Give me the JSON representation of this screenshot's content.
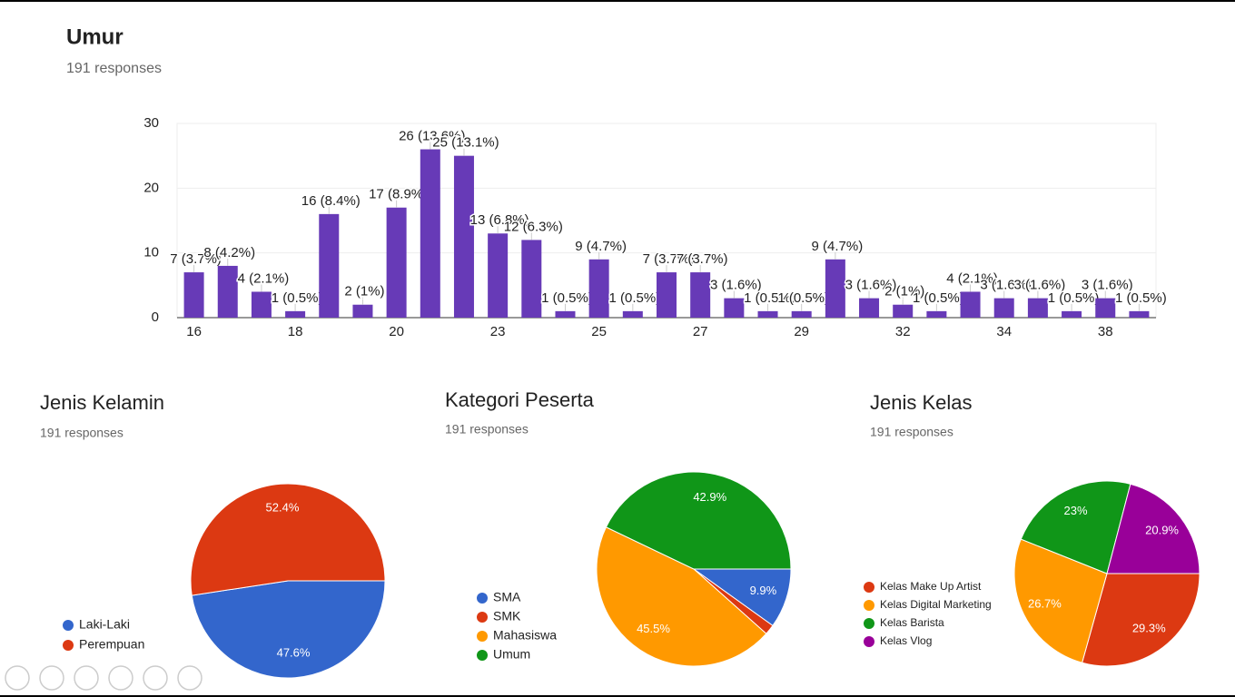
{
  "chart_data": [
    {
      "type": "bar",
      "title": "Umur",
      "subtitle": "191 responses",
      "categories": [
        16,
        null,
        null,
        18,
        null,
        null,
        20,
        null,
        null,
        23,
        null,
        null,
        25,
        null,
        null,
        27,
        null,
        null,
        29,
        null,
        null,
        32,
        null,
        null,
        34,
        null,
        null,
        38,
        null
      ],
      "values": [
        7,
        8,
        4,
        1,
        16,
        2,
        17,
        26,
        25,
        13,
        12,
        1,
        9,
        1,
        7,
        7,
        3,
        1,
        1,
        9,
        3,
        2,
        1,
        4,
        3,
        3,
        1,
        3,
        1
      ],
      "value_labels": [
        "7 (3.7%)",
        "8 (4.2%)",
        "4 (2.1%)",
        "1 (0.5%)",
        "16 (8.4%)",
        "2 (1%)",
        "17 (8.9%)",
        "26 (13.6%)",
        "25 (13.1%)",
        "13 (6.8%)",
        "12 (6.3%)",
        "1 (0.5%)",
        "9 (4.7%)",
        "1 (0.5%)",
        "7 (3.7%)",
        "7 (3.7%)",
        "3 (1.6%)",
        "1 (0.5%)",
        "1 (0.5%)",
        "9 (4.7%)",
        "3 (1.6%)",
        "2 (1%)",
        "1 (0.5%)",
        "4 (2.1%)",
        "3 (1.6%)",
        "3 (1.6%)",
        "1 (0.5%)",
        "3 (1.6%)",
        "1 (0.5%)"
      ],
      "color": "#673ab7",
      "ylim": [
        0,
        30
      ],
      "yticks": [
        0,
        10,
        20,
        30
      ],
      "grid": true
    },
    {
      "type": "pie",
      "title": "Jenis Kelamin",
      "subtitle": "191 responses",
      "categories": [
        "Laki-Laki",
        "Perempuan"
      ],
      "values": [
        47.6,
        52.4
      ],
      "value_labels": [
        "47.6%",
        "52.4%"
      ],
      "colors": [
        "#3366cc",
        "#dc3912"
      ]
    },
    {
      "type": "pie",
      "title": "Kategori Peserta",
      "subtitle": "191 responses",
      "categories": [
        "SMA",
        "SMK",
        "Mahasiswa",
        "Umum"
      ],
      "values": [
        9.9,
        1.7,
        45.5,
        42.9
      ],
      "value_labels": [
        "9.9%",
        null,
        "45.5%",
        "42.9%"
      ],
      "colors": [
        "#3366cc",
        "#dc3912",
        "#ff9900",
        "#109618"
      ]
    },
    {
      "type": "pie",
      "title": "Jenis Kelas",
      "subtitle": "191 responses",
      "categories": [
        "Kelas Make Up Artist",
        "Kelas Digital Marketing",
        "Kelas Barista",
        "Kelas Vlog"
      ],
      "values": [
        29.3,
        26.7,
        23,
        20.9
      ],
      "value_labels": [
        "29.3%",
        "26.7%",
        "23%",
        "20.9%"
      ],
      "colors": [
        "#dc3912",
        "#ff9900",
        "#109618",
        "#990099"
      ]
    }
  ]
}
